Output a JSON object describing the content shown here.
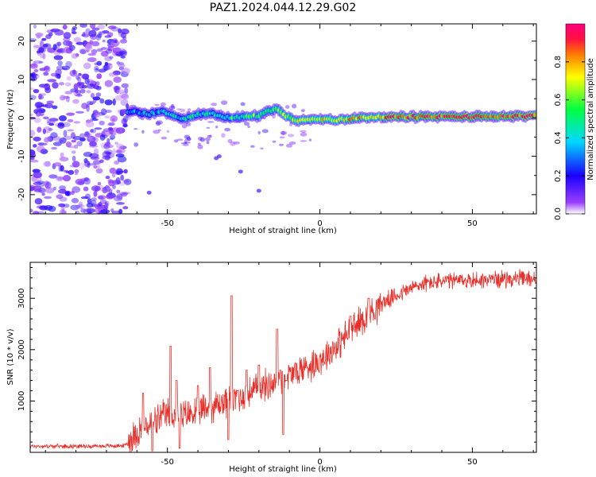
{
  "title": "PAZ1.2024.044.12.29.G02",
  "chart_data": [
    {
      "type": "heatmap",
      "xlabel": "Height of straight line (km)",
      "ylabel": "Frequency (Hz)",
      "xlim": [
        -95,
        71
      ],
      "ylim": [
        -25,
        24.5
      ],
      "xticks": [
        "-50",
        "0",
        "50"
      ],
      "yticks": [
        "-20",
        "-10",
        "0",
        "10",
        "20"
      ],
      "colorbar": {
        "label": "Normalized spectral amplitude",
        "range": [
          0,
          1
        ],
        "ticks": [
          "0.0",
          "0.2",
          "0.4",
          "0.6",
          "0.8"
        ],
        "colors": [
          "#ffffff",
          "#9a3fff",
          "#1a00ff",
          "#00d9ff",
          "#00ff40",
          "#ffff00",
          "#ff7a00",
          "#ff1040",
          "#ff0080"
        ]
      },
      "ridge": [
        {
          "x": -63,
          "f": 1.5
        },
        {
          "x": -60,
          "f": 1.5
        },
        {
          "x": -56,
          "f": 1.0
        },
        {
          "x": -52,
          "f": 1.8
        },
        {
          "x": -48,
          "f": 0.5
        },
        {
          "x": -44,
          "f": -0.2
        },
        {
          "x": -40,
          "f": 0.8
        },
        {
          "x": -36,
          "f": 1.2
        },
        {
          "x": -32,
          "f": 0.3
        },
        {
          "x": -28,
          "f": 0.0
        },
        {
          "x": -24,
          "f": 0.4
        },
        {
          "x": -20,
          "f": 0.6
        },
        {
          "x": -16,
          "f": 2.0
        },
        {
          "x": -14,
          "f": 2.6
        },
        {
          "x": -12,
          "f": 0.8
        },
        {
          "x": -8,
          "f": -0.6
        },
        {
          "x": -4,
          "f": -0.6
        },
        {
          "x": 0,
          "f": -0.2
        },
        {
          "x": 4,
          "f": -0.6
        },
        {
          "x": 8,
          "f": -0.4
        },
        {
          "x": 12,
          "f": 0.0
        },
        {
          "x": 16,
          "f": 0.2
        },
        {
          "x": 20,
          "f": 0.2
        },
        {
          "x": 25,
          "f": 0.2
        },
        {
          "x": 30,
          "f": 0.3
        },
        {
          "x": 40,
          "f": 0.3
        },
        {
          "x": 50,
          "f": 0.3
        },
        {
          "x": 60,
          "f": 0.4
        },
        {
          "x": 71,
          "f": 0.5
        }
      ]
    },
    {
      "type": "line",
      "xlabel": "Height of straight line (km)",
      "ylabel": "SNR (10 * v/v)",
      "xlim": [
        -95,
        71
      ],
      "ylim": [
        0,
        3700
      ],
      "xticks": [
        "-50",
        "0",
        "50"
      ],
      "yticks": [
        "1000",
        "2000",
        "3000"
      ],
      "color": "#e8302a",
      "trend": [
        {
          "x": -95,
          "y": 120
        },
        {
          "x": -75,
          "y": 120
        },
        {
          "x": -64,
          "y": 130
        },
        {
          "x": -60,
          "y": 400
        },
        {
          "x": -55,
          "y": 550
        },
        {
          "x": -50,
          "y": 750
        },
        {
          "x": -45,
          "y": 700
        },
        {
          "x": -40,
          "y": 800
        },
        {
          "x": -35,
          "y": 900
        },
        {
          "x": -30,
          "y": 1000
        },
        {
          "x": -25,
          "y": 1100
        },
        {
          "x": -20,
          "y": 1250
        },
        {
          "x": -15,
          "y": 1350
        },
        {
          "x": -10,
          "y": 1500
        },
        {
          "x": -5,
          "y": 1650
        },
        {
          "x": 0,
          "y": 1800
        },
        {
          "x": 5,
          "y": 2050
        },
        {
          "x": 10,
          "y": 2350
        },
        {
          "x": 15,
          "y": 2650
        },
        {
          "x": 20,
          "y": 2900
        },
        {
          "x": 25,
          "y": 3050
        },
        {
          "x": 30,
          "y": 3200
        },
        {
          "x": 35,
          "y": 3300
        },
        {
          "x": 40,
          "y": 3330
        },
        {
          "x": 50,
          "y": 3350
        },
        {
          "x": 60,
          "y": 3380
        },
        {
          "x": 71,
          "y": 3380
        }
      ],
      "spikes": [
        {
          "x": -58,
          "y": 1150
        },
        {
          "x": -49,
          "y": 2070
        },
        {
          "x": -47,
          "y": 1400
        },
        {
          "x": -40,
          "y": 1300
        },
        {
          "x": -36,
          "y": 1650
        },
        {
          "x": -29,
          "y": 3050
        },
        {
          "x": -27,
          "y": 1200
        },
        {
          "x": -24,
          "y": 1600
        },
        {
          "x": -20,
          "y": 1700
        },
        {
          "x": -14,
          "y": 2400
        },
        {
          "x": -13,
          "y": 1600
        },
        {
          "x": -11,
          "y": 1400
        },
        {
          "x": 10,
          "y": 2650
        },
        {
          "x": 16,
          "y": 3000
        }
      ],
      "dips": [
        {
          "x": -12,
          "y": 350
        },
        {
          "x": -30,
          "y": 250
        },
        {
          "x": -55,
          "y": 30
        },
        {
          "x": -46,
          "y": 80
        }
      ]
    }
  ]
}
